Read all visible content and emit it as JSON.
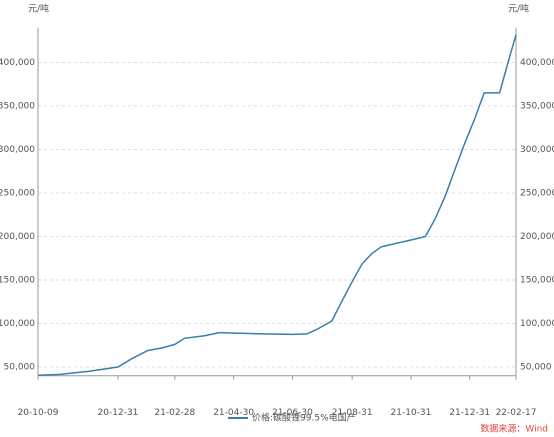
{
  "chart_data": {
    "type": "line",
    "y_label": "元/吨",
    "y2_label": "元/吨",
    "source": "数据来源：Wind",
    "x": [
      "20-10-09",
      "20-11-01",
      "20-12-01",
      "20-12-31",
      "21-01-15",
      "21-01-31",
      "21-02-15",
      "21-02-28",
      "21-03-10",
      "21-03-31",
      "21-04-15",
      "21-04-30",
      "21-05-31",
      "21-06-30",
      "21-07-15",
      "21-07-25",
      "21-08-10",
      "21-08-20",
      "21-08-31",
      "21-09-10",
      "21-09-20",
      "21-09-30",
      "21-10-15",
      "21-10-31",
      "21-11-15",
      "21-11-25",
      "21-12-05",
      "21-12-15",
      "21-12-25",
      "22-01-05",
      "22-01-15",
      "22-01-31",
      "22-02-05",
      "22-02-10",
      "22-02-17"
    ],
    "series": [
      {
        "name": "价格:碳酸锂99.5%电国产",
        "color": "#3a7fa8",
        "values": [
          40500,
          41500,
          45000,
          50000,
          60000,
          69000,
          72000,
          76000,
          83000,
          86000,
          89500,
          89000,
          88000,
          87500,
          88000,
          93000,
          103000,
          125000,
          148000,
          168000,
          180000,
          188000,
          192000,
          196000,
          200000,
          220000,
          245000,
          275000,
          305000,
          335000,
          365000,
          365000,
          385000,
          405000,
          432000
        ]
      }
    ],
    "xlim": [
      "20-10-09",
      "22-02-17"
    ],
    "xticks": [
      "20-10-09",
      "20-12-31",
      "21-02-28",
      "21-04-30",
      "21-06-30",
      "21-08-31",
      "21-10-31",
      "21-12-31",
      "22-02-17"
    ],
    "ylim": [
      40000,
      440000
    ],
    "yticks": [
      {
        "value": 50000,
        "label": "50,000"
      },
      {
        "value": 100000,
        "label": "100,000"
      },
      {
        "value": 150000,
        "label": "150,000"
      },
      {
        "value": 200000,
        "label": "200,000"
      },
      {
        "value": 250000,
        "label": "250,000"
      },
      {
        "value": 300000,
        "label": "300,000"
      },
      {
        "value": 350000,
        "label": "350,000"
      },
      {
        "value": 400000,
        "label": "400,000"
      }
    ],
    "grid": true
  }
}
